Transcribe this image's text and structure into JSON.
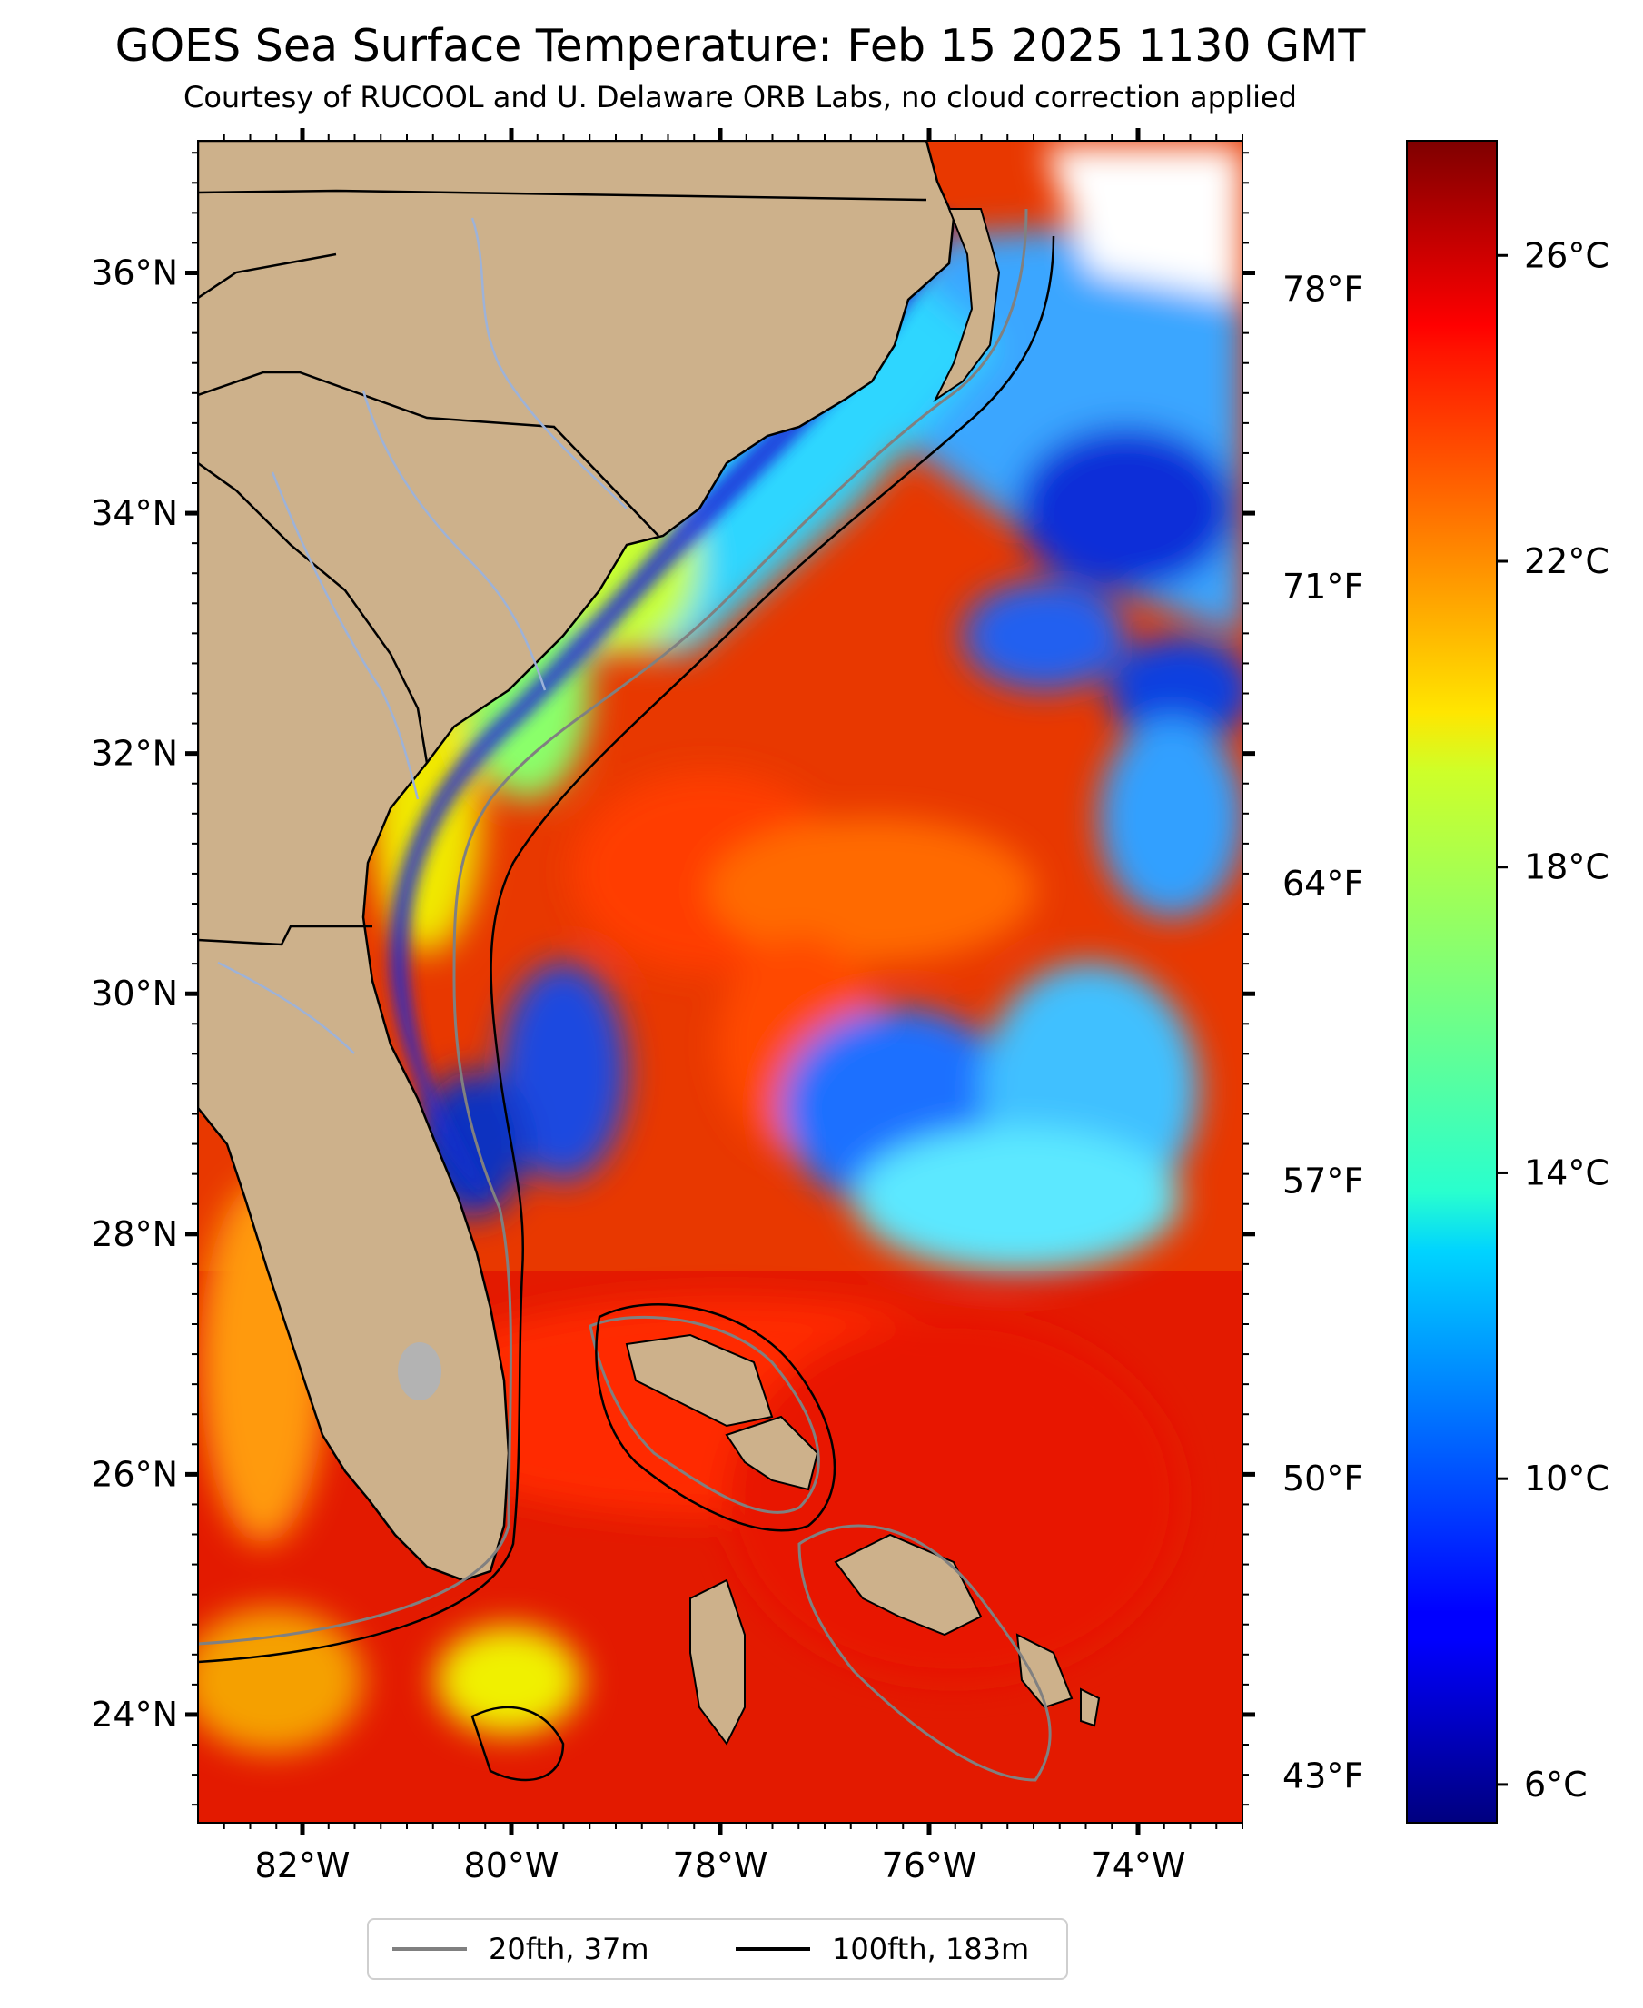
{
  "header": {
    "title": "GOES Sea Surface Temperature: Feb 15 2025 1130 GMT",
    "subtitle": "Courtesy of RUCOOL and U. Delaware ORB Labs, no cloud correction applied"
  },
  "map": {
    "extent": {
      "lon": [
        -83,
        -73
      ],
      "lat": [
        23.1,
        37.1
      ]
    },
    "lat_ticks": [
      {
        "value": 36,
        "label": "36°N"
      },
      {
        "value": 34,
        "label": "34°N"
      },
      {
        "value": 32,
        "label": "32°N"
      },
      {
        "value": 30,
        "label": "30°N"
      },
      {
        "value": 28,
        "label": "28°N"
      },
      {
        "value": 26,
        "label": "26°N"
      },
      {
        "value": 24,
        "label": "24°N"
      }
    ],
    "lon_ticks": [
      {
        "value": -82,
        "label": "82°W"
      },
      {
        "value": -80,
        "label": "80°W"
      },
      {
        "value": -78,
        "label": "78°W"
      },
      {
        "value": -76,
        "label": "76°W"
      },
      {
        "value": -74,
        "label": "74°W"
      }
    ],
    "fahrenheit_ticks": [
      {
        "celsius": 25.56,
        "label": "78°F"
      },
      {
        "celsius": 21.67,
        "label": "71°F"
      },
      {
        "celsius": 17.78,
        "label": "64°F"
      },
      {
        "celsius": 13.89,
        "label": "57°F"
      },
      {
        "celsius": 10.0,
        "label": "50°F"
      },
      {
        "celsius": 6.11,
        "label": "43°F"
      }
    ],
    "land_color": "#cdb18b",
    "state_border_color": "#000000",
    "river_color": "#9db2d8"
  },
  "colorbar": {
    "range_celsius": [
      5.5,
      27.5
    ],
    "colormap": "jet",
    "ticks": [
      {
        "value": 26,
        "label": "26°C"
      },
      {
        "value": 22,
        "label": "22°C"
      },
      {
        "value": 18,
        "label": "18°C"
      },
      {
        "value": 14,
        "label": "14°C"
      },
      {
        "value": 10,
        "label": "10°C"
      },
      {
        "value": 6,
        "label": "6°C"
      }
    ]
  },
  "legend": {
    "placement": "bottom-center",
    "items": [
      {
        "label": "20fth, 37m",
        "color": "#808080"
      },
      {
        "label": "100fth, 183m",
        "color": "#000000"
      }
    ]
  }
}
